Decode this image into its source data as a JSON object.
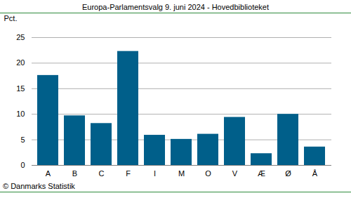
{
  "chart_data": {
    "type": "bar",
    "title": "Europa-Parlamentsvalg 9. juni 2024 - Hovedbiblioteket",
    "y_label": "Pct.",
    "categories": [
      "A",
      "B",
      "C",
      "F",
      "I",
      "M",
      "O",
      "V",
      "Æ",
      "Ø",
      "Å"
    ],
    "values": [
      17.6,
      9.7,
      8.2,
      22.3,
      5.9,
      5.1,
      6.1,
      9.4,
      2.3,
      10.0,
      3.6
    ],
    "color": "#005f8a",
    "ylim": [
      0,
      25
    ],
    "yticks": [
      0,
      5,
      10,
      15,
      20,
      25
    ],
    "grid": true,
    "caption": "© Danmarks Statistik"
  }
}
